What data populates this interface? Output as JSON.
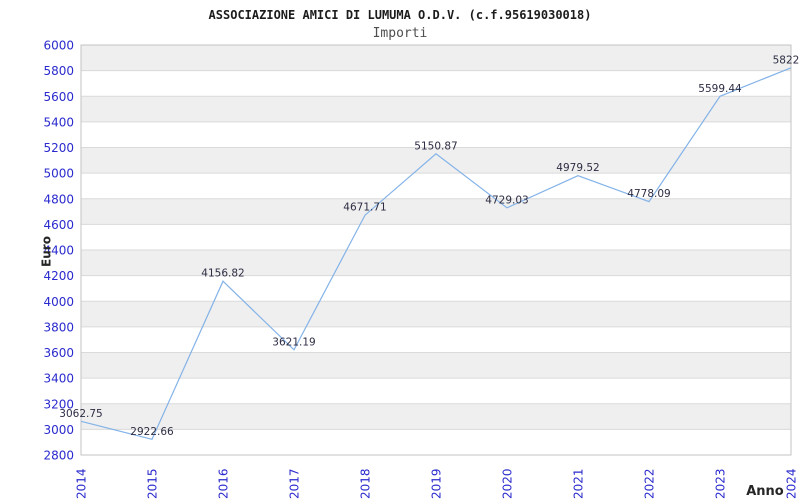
{
  "chart_data": {
    "type": "line",
    "title": "ASSOCIAZIONE AMICI DI LUMUMA O.D.V. (c.f.95619030018)",
    "subtitle": "Importi",
    "xlabel": "Anno",
    "ylabel": "Euro",
    "x": [
      "2014",
      "2015",
      "2016",
      "2017",
      "2018",
      "2019",
      "2020",
      "2021",
      "2022",
      "2023",
      "2024"
    ],
    "series": [
      {
        "name": "Importi",
        "values": [
          3062.75,
          2922.66,
          4156.82,
          3621.19,
          4671.71,
          5150.87,
          4729.03,
          4979.52,
          4778.09,
          5599.44,
          5822.0
        ]
      }
    ],
    "point_labels": [
      "3062.75",
      "2922.66",
      "4156.82",
      "3621.19",
      "4671.71",
      "5150.87",
      "4729.03",
      "4979.52",
      "4778.09",
      "5599.44",
      "5822.0"
    ],
    "ylim": [
      2800,
      6000
    ],
    "ytick_step": 200,
    "grid": true,
    "band_background": true,
    "legend_position": "none",
    "colors": {
      "line": "#84b3e8",
      "tick_label": "#2a2ace",
      "data_label": "#2d2d44",
      "band": "#efefef",
      "grid": "#dadada",
      "border": "#c3c3c3",
      "title": "#1c1c1c",
      "subtitle": "#4f4f4f",
      "axis_title": "#262626",
      "background": "#ffffff"
    }
  }
}
